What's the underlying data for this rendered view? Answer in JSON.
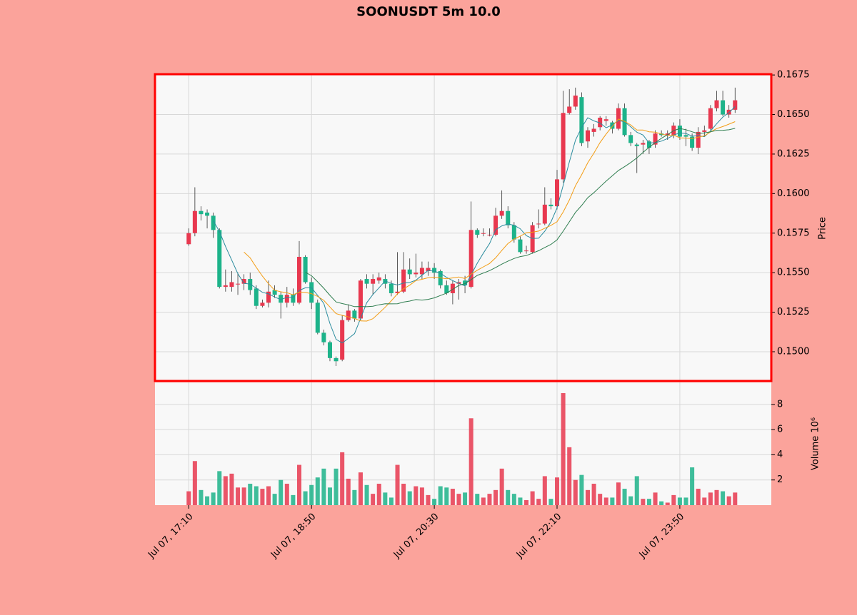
{
  "chart_data": {
    "type": "candlestick",
    "title": "SOONUSDT 5m 10.0",
    "ylabel": "Price",
    "volume_label": "Volume  10⁶",
    "up_color": "#e8384f",
    "down_color": "#1db38a",
    "grid": true,
    "xlim": [
      -5.5,
      94.9
    ],
    "xticks": [
      {
        "value": 0,
        "label": "Jul 07, 17:10"
      },
      {
        "value": 20,
        "label": "Jul 07, 18:50"
      },
      {
        "value": 40,
        "label": "Jul 07, 20:30"
      },
      {
        "value": 60,
        "label": "Jul 07, 22:10"
      },
      {
        "value": 80,
        "label": "Jul 07, 23:50"
      }
    ],
    "ylim": [
      0.14815,
      0.16755
    ],
    "yticks": [
      {
        "value": 0.15,
        "label": "0.1500"
      },
      {
        "value": 0.1525,
        "label": "0.1525"
      },
      {
        "value": 0.155,
        "label": "0.1550"
      },
      {
        "value": 0.1575,
        "label": "0.1575"
      },
      {
        "value": 0.16,
        "label": "0.1600"
      },
      {
        "value": 0.1625,
        "label": "0.1625"
      },
      {
        "value": 0.165,
        "label": "0.1650"
      },
      {
        "value": 0.1675,
        "label": "0.1675"
      }
    ],
    "volume_ylim": [
      0,
      9.75
    ],
    "volume_yticks": [
      2,
      4,
      6,
      8
    ],
    "mav": [
      {
        "period": 5,
        "color": "#2b8c9e"
      },
      {
        "period": 10,
        "color": "#f39c12"
      },
      {
        "period": 20,
        "color": "#2e7d4f"
      }
    ],
    "open": [
      0.1568,
      0.1575,
      0.1589,
      0.1588,
      0.1586,
      0.1577,
      0.1541,
      0.1541,
      0.1543,
      0.1543,
      0.1546,
      0.154,
      0.1529,
      0.1531,
      0.1539,
      0.1536,
      0.1531,
      0.1536,
      0.1531,
      0.156,
      0.1544,
      0.1531,
      0.1512,
      0.1506,
      0.1496,
      0.1495,
      0.152,
      0.1526,
      0.1521,
      0.1546,
      0.1543,
      0.1545,
      0.1546,
      0.1543,
      0.1537,
      0.1538,
      0.1552,
      0.1549,
      0.1549,
      0.1551,
      0.1553,
      0.1551,
      0.1542,
      0.1537,
      0.1543,
      0.1545,
      0.1541,
      0.1577,
      0.1575,
      0.1574,
      0.1574,
      0.1586,
      0.1589,
      0.158,
      0.1571,
      0.1564,
      0.1563,
      0.1581,
      0.1581,
      0.1593,
      0.1592,
      0.1609,
      0.1651,
      0.1655,
      0.1661,
      0.1633,
      0.1639,
      0.1642,
      0.1646,
      0.1645,
      0.1641,
      0.1654,
      0.1637,
      0.1631,
      0.1631,
      0.1633,
      0.1631,
      0.1638,
      0.1637,
      0.1637,
      0.1643,
      0.1637,
      0.1636,
      0.1629,
      0.1639,
      0.1641,
      0.1654,
      0.1659,
      0.165,
      0.1653
    ],
    "high": [
      0.1578,
      0.1604,
      0.1592,
      0.159,
      0.1588,
      0.1578,
      0.1552,
      0.1551,
      0.155,
      0.1549,
      0.155,
      0.1542,
      0.1533,
      0.1545,
      0.1542,
      0.1538,
      0.1541,
      0.154,
      0.157,
      0.1561,
      0.1547,
      0.1533,
      0.1514,
      0.1507,
      0.1497,
      0.1523,
      0.153,
      0.1527,
      0.1546,
      0.1549,
      0.1549,
      0.155,
      0.1549,
      0.1545,
      0.1563,
      0.1563,
      0.1559,
      0.1562,
      0.1557,
      0.1557,
      0.1556,
      0.1552,
      0.1545,
      0.1545,
      0.1546,
      0.1548,
      0.1595,
      0.1578,
      0.1578,
      0.1578,
      0.1591,
      0.1602,
      0.1592,
      0.1582,
      0.1573,
      0.1567,
      0.1582,
      0.159,
      0.1604,
      0.1597,
      0.1615,
      0.1665,
      0.1666,
      0.1667,
      0.1664,
      0.1642,
      0.1644,
      0.1649,
      0.1649,
      0.1646,
      0.1657,
      0.1657,
      0.1639,
      0.1632,
      0.1634,
      0.1634,
      0.164,
      0.164,
      0.164,
      0.1645,
      0.1647,
      0.1641,
      0.1638,
      0.1642,
      0.1643,
      0.1656,
      0.1665,
      0.1665,
      0.1656,
      0.1667
    ],
    "low": [
      0.1567,
      0.1573,
      0.1583,
      0.1578,
      0.1572,
      0.154,
      0.1538,
      0.1538,
      0.1536,
      0.1539,
      0.1536,
      0.1527,
      0.1528,
      0.1528,
      0.1534,
      0.1521,
      0.1528,
      0.1529,
      0.153,
      0.1543,
      0.1527,
      0.1511,
      0.1504,
      0.1494,
      0.1491,
      0.1494,
      0.1519,
      0.1519,
      0.152,
      0.154,
      0.1536,
      0.1543,
      0.154,
      0.1535,
      0.1536,
      0.1537,
      0.1546,
      0.1547,
      0.1546,
      0.1548,
      0.1546,
      0.154,
      0.1536,
      0.153,
      0.1533,
      0.1537,
      0.154,
      0.1572,
      0.1573,
      0.1573,
      0.1573,
      0.1584,
      0.1578,
      0.1569,
      0.1562,
      0.1562,
      0.1562,
      0.1578,
      0.158,
      0.159,
      0.159,
      0.1607,
      0.165,
      0.1653,
      0.163,
      0.1629,
      0.1636,
      0.164,
      0.1643,
      0.1638,
      0.164,
      0.1636,
      0.163,
      0.1613,
      0.1625,
      0.1625,
      0.1629,
      0.1636,
      0.1634,
      0.1635,
      0.1634,
      0.163,
      0.1627,
      0.1625,
      0.1636,
      0.164,
      0.1652,
      0.1649,
      0.1648,
      0.1651
    ],
    "close": [
      0.1575,
      0.1589,
      0.1587,
      0.1586,
      0.1577,
      0.1541,
      0.1542,
      0.1544,
      0.1543,
      0.1546,
      0.1539,
      0.1529,
      0.1531,
      0.1538,
      0.1536,
      0.1531,
      0.1536,
      0.1531,
      0.156,
      0.1544,
      0.1531,
      0.1512,
      0.1506,
      0.1496,
      0.1494,
      0.152,
      0.1526,
      0.1521,
      0.1545,
      0.1543,
      0.1546,
      0.1547,
      0.1543,
      0.1537,
      0.1538,
      0.1552,
      0.1549,
      0.155,
      0.1553,
      0.1553,
      0.155,
      0.1542,
      0.1537,
      0.1543,
      0.1544,
      0.1542,
      0.1577,
      0.1574,
      0.1575,
      0.1574,
      0.1586,
      0.1589,
      0.158,
      0.1571,
      0.1563,
      0.1564,
      0.158,
      0.1581,
      0.1593,
      0.1592,
      0.1609,
      0.1651,
      0.1655,
      0.1662,
      0.1632,
      0.164,
      0.1641,
      0.1648,
      0.1647,
      0.1641,
      0.1654,
      0.1637,
      0.1632,
      0.163,
      0.1632,
      0.1629,
      0.1638,
      0.1637,
      0.1638,
      0.1643,
      0.1636,
      0.1636,
      0.1629,
      0.1639,
      0.164,
      0.1654,
      0.1659,
      0.165,
      0.1653,
      0.1659
    ],
    "volume": [
      1.1,
      3.5,
      1.2,
      0.7,
      1.0,
      2.7,
      2.3,
      2.5,
      1.4,
      1.4,
      1.7,
      1.5,
      1.3,
      1.5,
      0.9,
      2.0,
      1.7,
      0.8,
      3.2,
      1.1,
      1.6,
      2.2,
      2.9,
      1.4,
      2.9,
      4.2,
      2.1,
      1.2,
      2.6,
      1.6,
      0.9,
      1.7,
      1.0,
      0.6,
      3.2,
      1.7,
      1.1,
      1.5,
      1.4,
      0.8,
      0.5,
      1.5,
      1.4,
      1.3,
      0.9,
      1.0,
      6.9,
      0.9,
      0.6,
      0.9,
      1.2,
      2.9,
      1.2,
      0.9,
      0.6,
      0.4,
      1.1,
      0.5,
      2.3,
      0.5,
      2.2,
      8.9,
      4.6,
      2.0,
      2.4,
      1.2,
      1.7,
      0.9,
      0.6,
      0.6,
      1.8,
      1.3,
      0.7,
      2.3,
      0.5,
      0.5,
      1.0,
      0.3,
      0.2,
      0.8,
      0.6,
      0.6,
      3.0,
      1.3,
      0.6,
      1.0,
      1.2,
      1.1,
      0.7,
      1.0
    ]
  }
}
